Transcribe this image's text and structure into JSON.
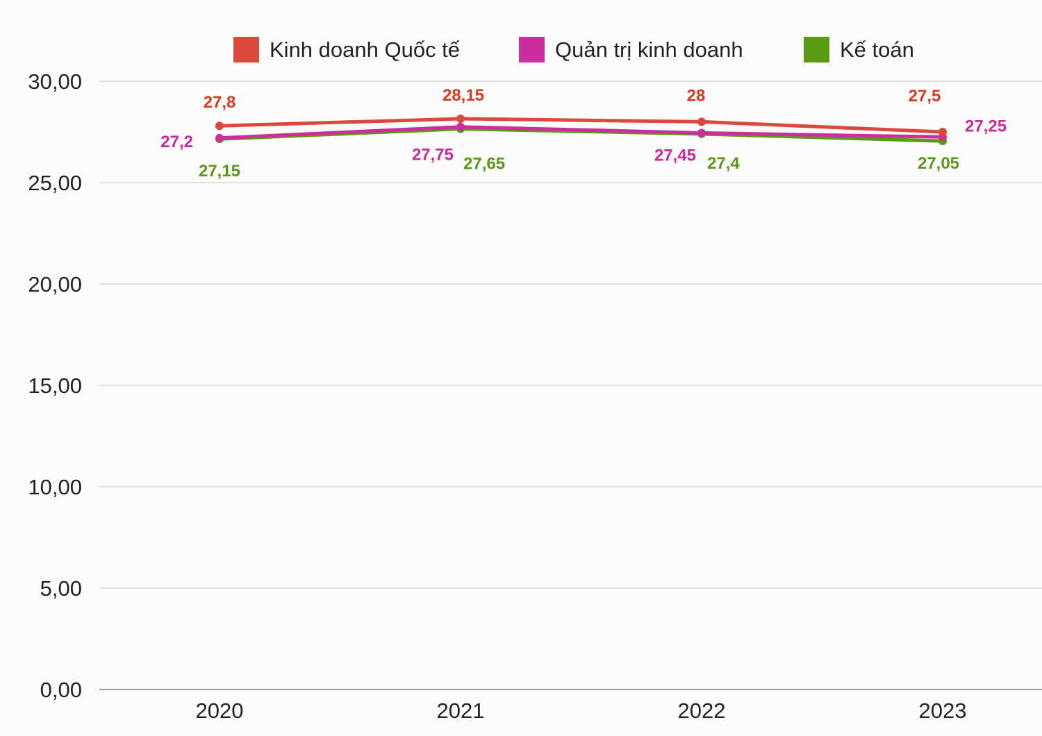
{
  "chart_data": {
    "type": "line",
    "categories": [
      "2020",
      "2021",
      "2022",
      "2023"
    ],
    "ylim": [
      0,
      30
    ],
    "yticks": [
      "0,00",
      "5,00",
      "10,00",
      "15,00",
      "20,00",
      "25,00",
      "30,00"
    ],
    "ytick_values": [
      0,
      5,
      10,
      15,
      20,
      25,
      30
    ],
    "grid": true,
    "legend_position": "top",
    "series": [
      {
        "name": "Kinh doanh Quốc tế",
        "color": "#d9493c",
        "label_color": "#d63b1e",
        "values": [
          27.8,
          28.15,
          28,
          27.5
        ],
        "labels": [
          "27,8",
          "28,15",
          "28",
          "27,5"
        ]
      },
      {
        "name": "Quản trị kinh doanh",
        "color": "#cc2e9e",
        "label_color": "#c82a9a",
        "values": [
          27.2,
          27.75,
          27.45,
          27.25
        ],
        "labels": [
          "27,2",
          "27,75",
          "27,45",
          "27,25"
        ]
      },
      {
        "name": "Kế toán",
        "color": "#5a9a14",
        "label_color": "#5a9618",
        "values": [
          27.15,
          27.65,
          27.4,
          27.05
        ],
        "labels": [
          "27,15",
          "27,65",
          "27,4",
          "27,05"
        ]
      }
    ]
  }
}
